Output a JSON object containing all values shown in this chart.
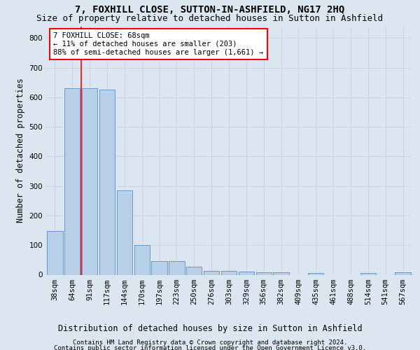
{
  "title": "7, FOXHILL CLOSE, SUTTON-IN-ASHFIELD, NG17 2HQ",
  "subtitle": "Size of property relative to detached houses in Sutton in Ashfield",
  "xlabel": "Distribution of detached houses by size in Sutton in Ashfield",
  "ylabel": "Number of detached properties",
  "categories": [
    "38sqm",
    "64sqm",
    "91sqm",
    "117sqm",
    "144sqm",
    "170sqm",
    "197sqm",
    "223sqm",
    "250sqm",
    "276sqm",
    "303sqm",
    "329sqm",
    "356sqm",
    "382sqm",
    "409sqm",
    "435sqm",
    "461sqm",
    "488sqm",
    "514sqm",
    "541sqm",
    "567sqm"
  ],
  "values": [
    148,
    630,
    630,
    625,
    285,
    100,
    47,
    45,
    28,
    12,
    12,
    10,
    8,
    8,
    0,
    5,
    0,
    0,
    5,
    0,
    8
  ],
  "bar_color": "#b8cfe8",
  "bar_edge_color": "#6699cc",
  "grid_color": "#c8d4e4",
  "background_color": "#dce6f0",
  "annotation_box_text": "7 FOXHILL CLOSE: 68sqm\n← 11% of detached houses are smaller (203)\n88% of semi-detached houses are larger (1,661) →",
  "property_line_x": 1.5,
  "ylim": [
    0,
    840
  ],
  "yticks": [
    0,
    100,
    200,
    300,
    400,
    500,
    600,
    700,
    800
  ],
  "footer_line1": "Contains HM Land Registry data © Crown copyright and database right 2024.",
  "footer_line2": "Contains public sector information licensed under the Open Government Licence v3.0.",
  "title_fontsize": 10,
  "subtitle_fontsize": 9,
  "xlabel_fontsize": 8.5,
  "ylabel_fontsize": 8.5,
  "tick_fontsize": 7.5,
  "footer_fontsize": 6.5,
  "annot_fontsize": 7.5
}
